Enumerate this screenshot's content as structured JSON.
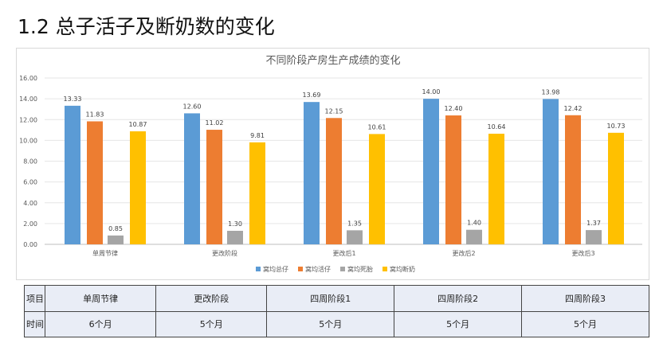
{
  "heading": "1.2 总子活子及断奶数的变化",
  "chart_data": {
    "type": "bar",
    "title": "不同阶段产房生产成绩的变化",
    "categories": [
      "单周节律",
      "更改阶段",
      "更改后1",
      "更改后2",
      "更改后3"
    ],
    "series": [
      {
        "name": "窝均总仔",
        "color": "#5b9bd5",
        "values": [
          13.33,
          12.6,
          13.69,
          14.0,
          13.98
        ]
      },
      {
        "name": "窝均活仔",
        "color": "#ed7d31",
        "values": [
          11.83,
          11.02,
          12.15,
          12.4,
          12.42
        ]
      },
      {
        "name": "窝均死胎",
        "color": "#a5a5a5",
        "values": [
          0.85,
          1.3,
          1.35,
          1.4,
          1.37
        ]
      },
      {
        "name": "窝均断奶",
        "color": "#ffc000",
        "values": [
          10.87,
          9.81,
          10.61,
          10.64,
          10.73
        ]
      }
    ],
    "ylim": [
      0,
      16
    ],
    "yticks": [
      "0.00",
      "2.00",
      "4.00",
      "6.00",
      "8.00",
      "10.00",
      "12.00",
      "14.00",
      "16.00"
    ],
    "legend": "bottom"
  },
  "table": {
    "rows": [
      [
        "项目",
        "单周节律",
        "更改阶段",
        "四周阶段1",
        "四周阶段2",
        "四周阶段3"
      ],
      [
        "时间",
        "6个月",
        "5个月",
        "5个月",
        "5个月",
        "5个月"
      ]
    ]
  }
}
